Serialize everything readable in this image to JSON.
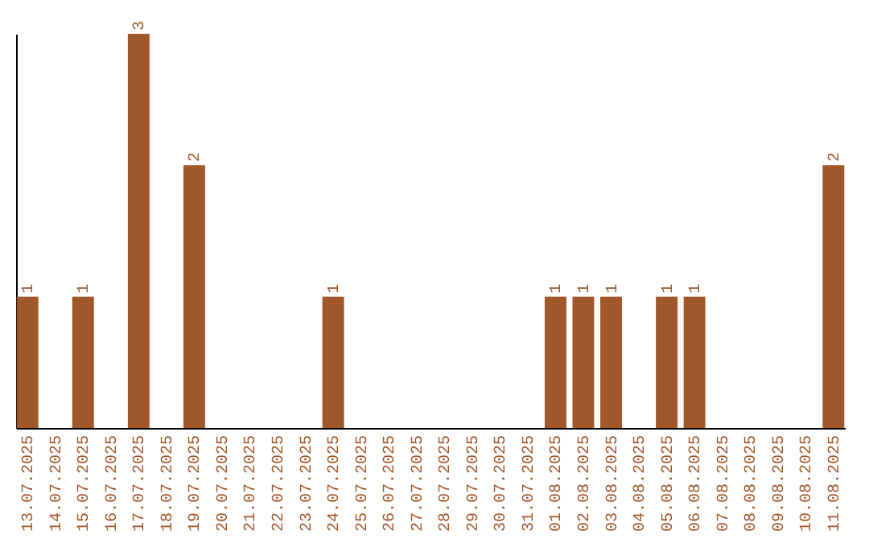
{
  "chart_data": {
    "type": "bar",
    "categories": [
      "13.07.2025",
      "14.07.2025",
      "15.07.2025",
      "16.07.2025",
      "17.07.2025",
      "18.07.2025",
      "19.07.2025",
      "20.07.2025",
      "21.07.2025",
      "22.07.2025",
      "23.07.2025",
      "24.07.2025",
      "25.07.2025",
      "26.07.2025",
      "27.07.2025",
      "28.07.2025",
      "29.07.2025",
      "30.07.2025",
      "31.07.2025",
      "01.08.2025",
      "02.08.2025",
      "03.08.2025",
      "04.08.2025",
      "05.08.2025",
      "06.08.2025",
      "07.08.2025",
      "08.08.2025",
      "09.08.2025",
      "10.08.2025",
      "11.08.2025"
    ],
    "values": [
      1,
      0,
      1,
      0,
      3,
      0,
      2,
      0,
      0,
      0,
      0,
      1,
      0,
      0,
      0,
      0,
      0,
      0,
      0,
      1,
      1,
      1,
      0,
      1,
      1,
      0,
      0,
      0,
      0,
      2
    ],
    "value_labels": [
      "1",
      null,
      "1",
      null,
      "3",
      null,
      "2",
      null,
      null,
      null,
      null,
      "1",
      null,
      null,
      null,
      null,
      null,
      null,
      null,
      "1",
      "1",
      "1",
      null,
      "1",
      "1",
      null,
      null,
      null,
      null,
      "2"
    ],
    "color": "#a0572a",
    "grid": false,
    "tick_labels": "x"
  }
}
